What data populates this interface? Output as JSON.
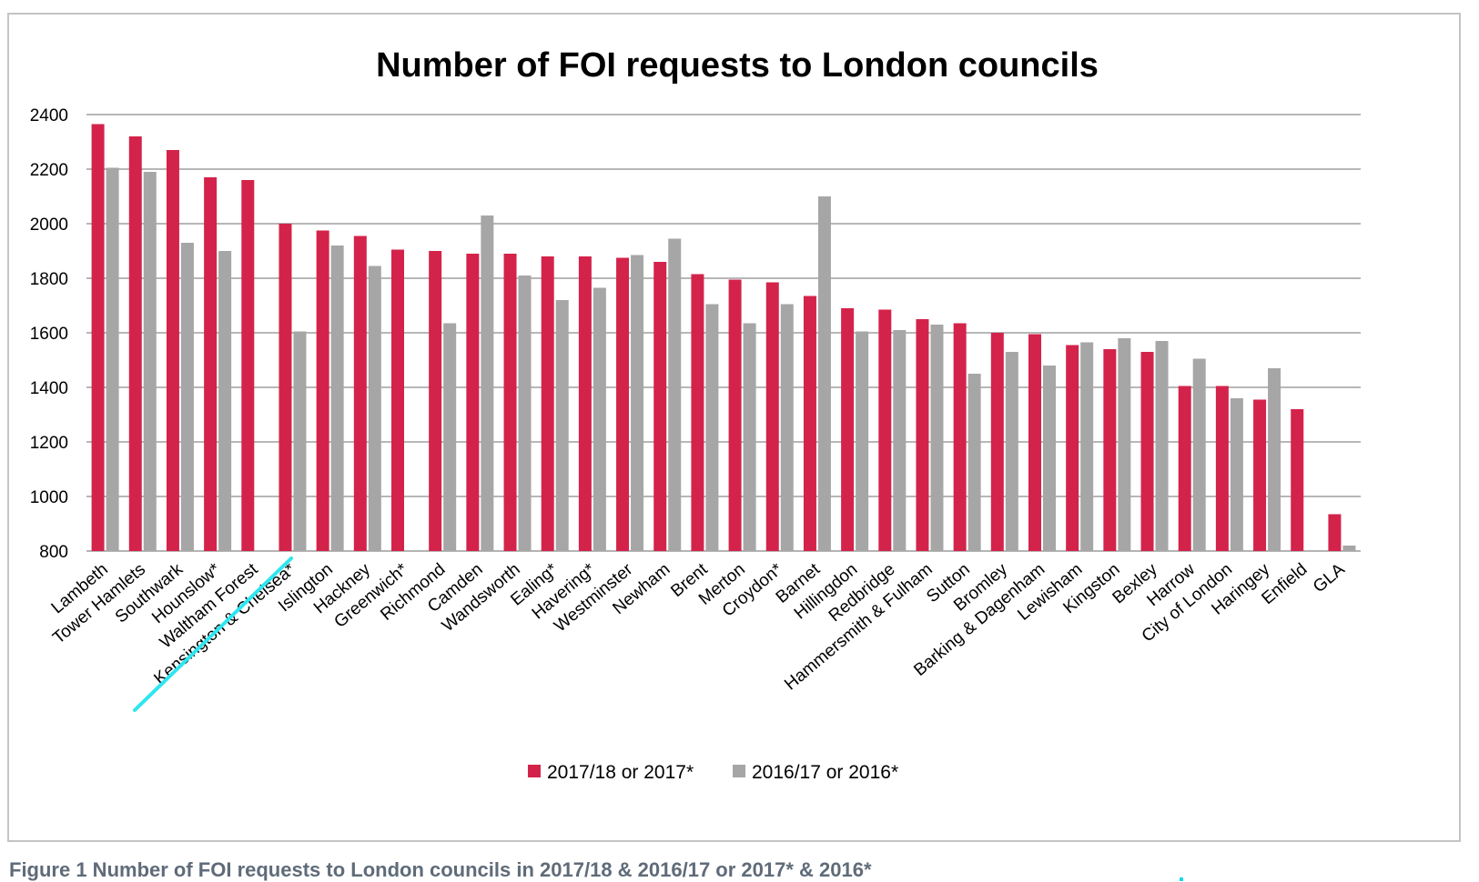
{
  "chart_data": {
    "type": "bar",
    "title": "Number of FOI requests to London councils",
    "ylim": [
      800,
      2400
    ],
    "yticks": [
      800,
      1000,
      1200,
      1400,
      1600,
      1800,
      2000,
      2200,
      2400
    ],
    "ytick_labels": [
      "800",
      "1000",
      "1200",
      "1400",
      "1600",
      "1800",
      "2000",
      "2200",
      "2400"
    ],
    "grid": true,
    "legend_position": "bottom",
    "categories": [
      "Lambeth",
      "Tower Hamlets",
      "Southwark",
      "Hounslow*",
      "Waltham Forest",
      "Kensington & Chelsea*",
      "Islington",
      "Hackney",
      "Greenwich*",
      "Richmond",
      "Camden",
      "Wandsworth",
      "Ealing*",
      "Havering*",
      "Westminster",
      "Newham",
      "Brent",
      "Merton",
      "Croydon*",
      "Barnet",
      "Hillingdon",
      "Redbridge",
      "Hammersmith & Fulham",
      "Sutton",
      "Bromley",
      "Barking & Dagenham",
      "Lewisham",
      "Kingston",
      "Bexley",
      "Harrow",
      "City of London",
      "Haringey",
      "Enfield",
      "GLA"
    ],
    "series": [
      {
        "name": "2017/18 or 2017*",
        "color": "#d4234a",
        "values": [
          2365,
          2320,
          2270,
          2170,
          2160,
          2000,
          1975,
          1955,
          1905,
          1900,
          1890,
          1890,
          1880,
          1880,
          1875,
          1860,
          1815,
          1795,
          1785,
          1735,
          1690,
          1685,
          1650,
          1635,
          1600,
          1595,
          1555,
          1540,
          1530,
          1405,
          1405,
          1355,
          1320,
          935
        ]
      },
      {
        "name": "2016/17 or 2016*",
        "color": "#a6a6a6",
        "values": [
          2205,
          2190,
          1930,
          1900,
          null,
          1605,
          1920,
          1845,
          null,
          1635,
          2030,
          1810,
          1720,
          1765,
          1885,
          1945,
          1705,
          1635,
          1705,
          2100,
          1605,
          1610,
          1630,
          1450,
          1530,
          1480,
          1565,
          1580,
          1570,
          1505,
          1360,
          1470,
          null,
          820
        ]
      }
    ]
  },
  "caption": "Figure 1 Number of FOI requests to London councils in 2017/18 & 2016/17 or 2017* & 2016*",
  "annotation": {
    "highlight_color": "#2ee6f0"
  }
}
